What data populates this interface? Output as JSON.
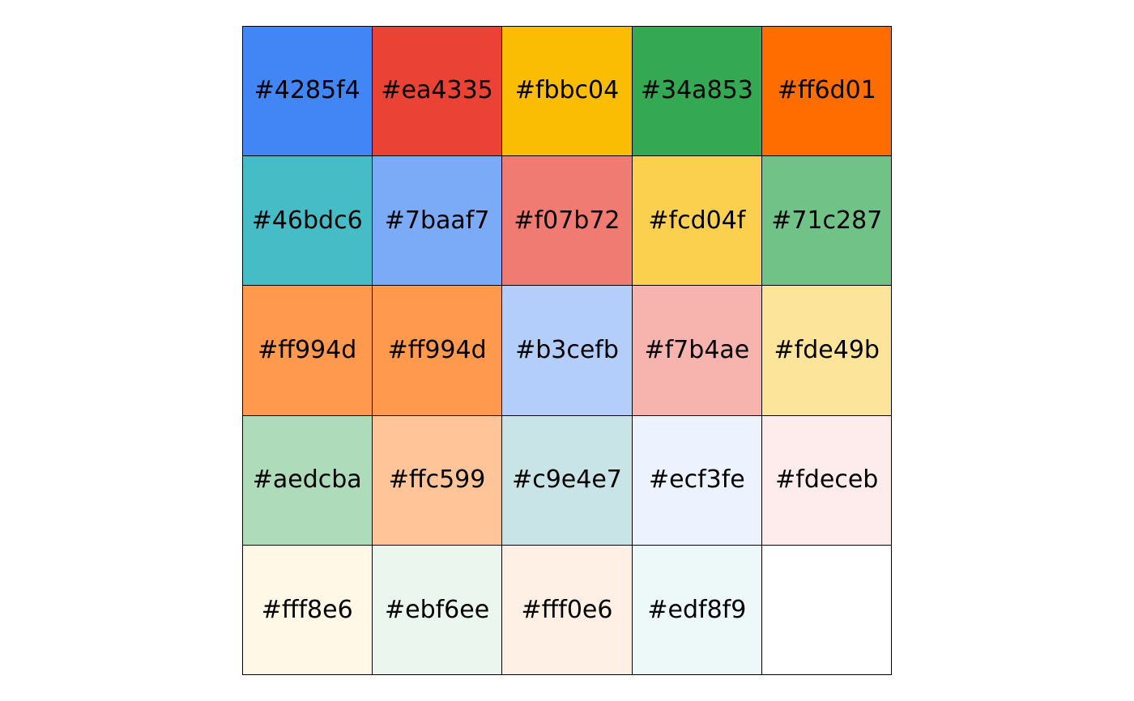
{
  "palette": {
    "swatches": [
      {
        "label": "#4285f4",
        "color": "#4285f4"
      },
      {
        "label": "#ea4335",
        "color": "#ea4335"
      },
      {
        "label": "#fbbc04",
        "color": "#fbbc04"
      },
      {
        "label": "#34a853",
        "color": "#34a853"
      },
      {
        "label": "#ff6d01",
        "color": "#ff6d01"
      },
      {
        "label": "#46bdc6",
        "color": "#46bdc6"
      },
      {
        "label": "#7baaf7",
        "color": "#7baaf7"
      },
      {
        "label": "#f07b72",
        "color": "#f07b72"
      },
      {
        "label": "#fcd04f",
        "color": "#fcd04f"
      },
      {
        "label": "#71c287",
        "color": "#71c287"
      },
      {
        "label": "#ff994d",
        "color": "#ff994d"
      },
      {
        "label": "#ff994d",
        "color": "#ff994d"
      },
      {
        "label": "#b3cefb",
        "color": "#b3cefb"
      },
      {
        "label": "#f7b4ae",
        "color": "#f7b4ae"
      },
      {
        "label": "#fde49b",
        "color": "#fde49b"
      },
      {
        "label": "#aedcba",
        "color": "#aedcba"
      },
      {
        "label": "#ffc599",
        "color": "#ffc599"
      },
      {
        "label": "#c9e4e7",
        "color": "#c9e4e7"
      },
      {
        "label": "#ecf3fe",
        "color": "#ecf3fe"
      },
      {
        "label": "#fdeceb",
        "color": "#fdeceb"
      },
      {
        "label": "#fff8e6",
        "color": "#fff8e6"
      },
      {
        "label": "#ebf6ee",
        "color": "#ebf6ee"
      },
      {
        "label": "#fff0e6",
        "color": "#fff0e6"
      },
      {
        "label": "#edf8f9",
        "color": "#edf8f9"
      }
    ]
  }
}
